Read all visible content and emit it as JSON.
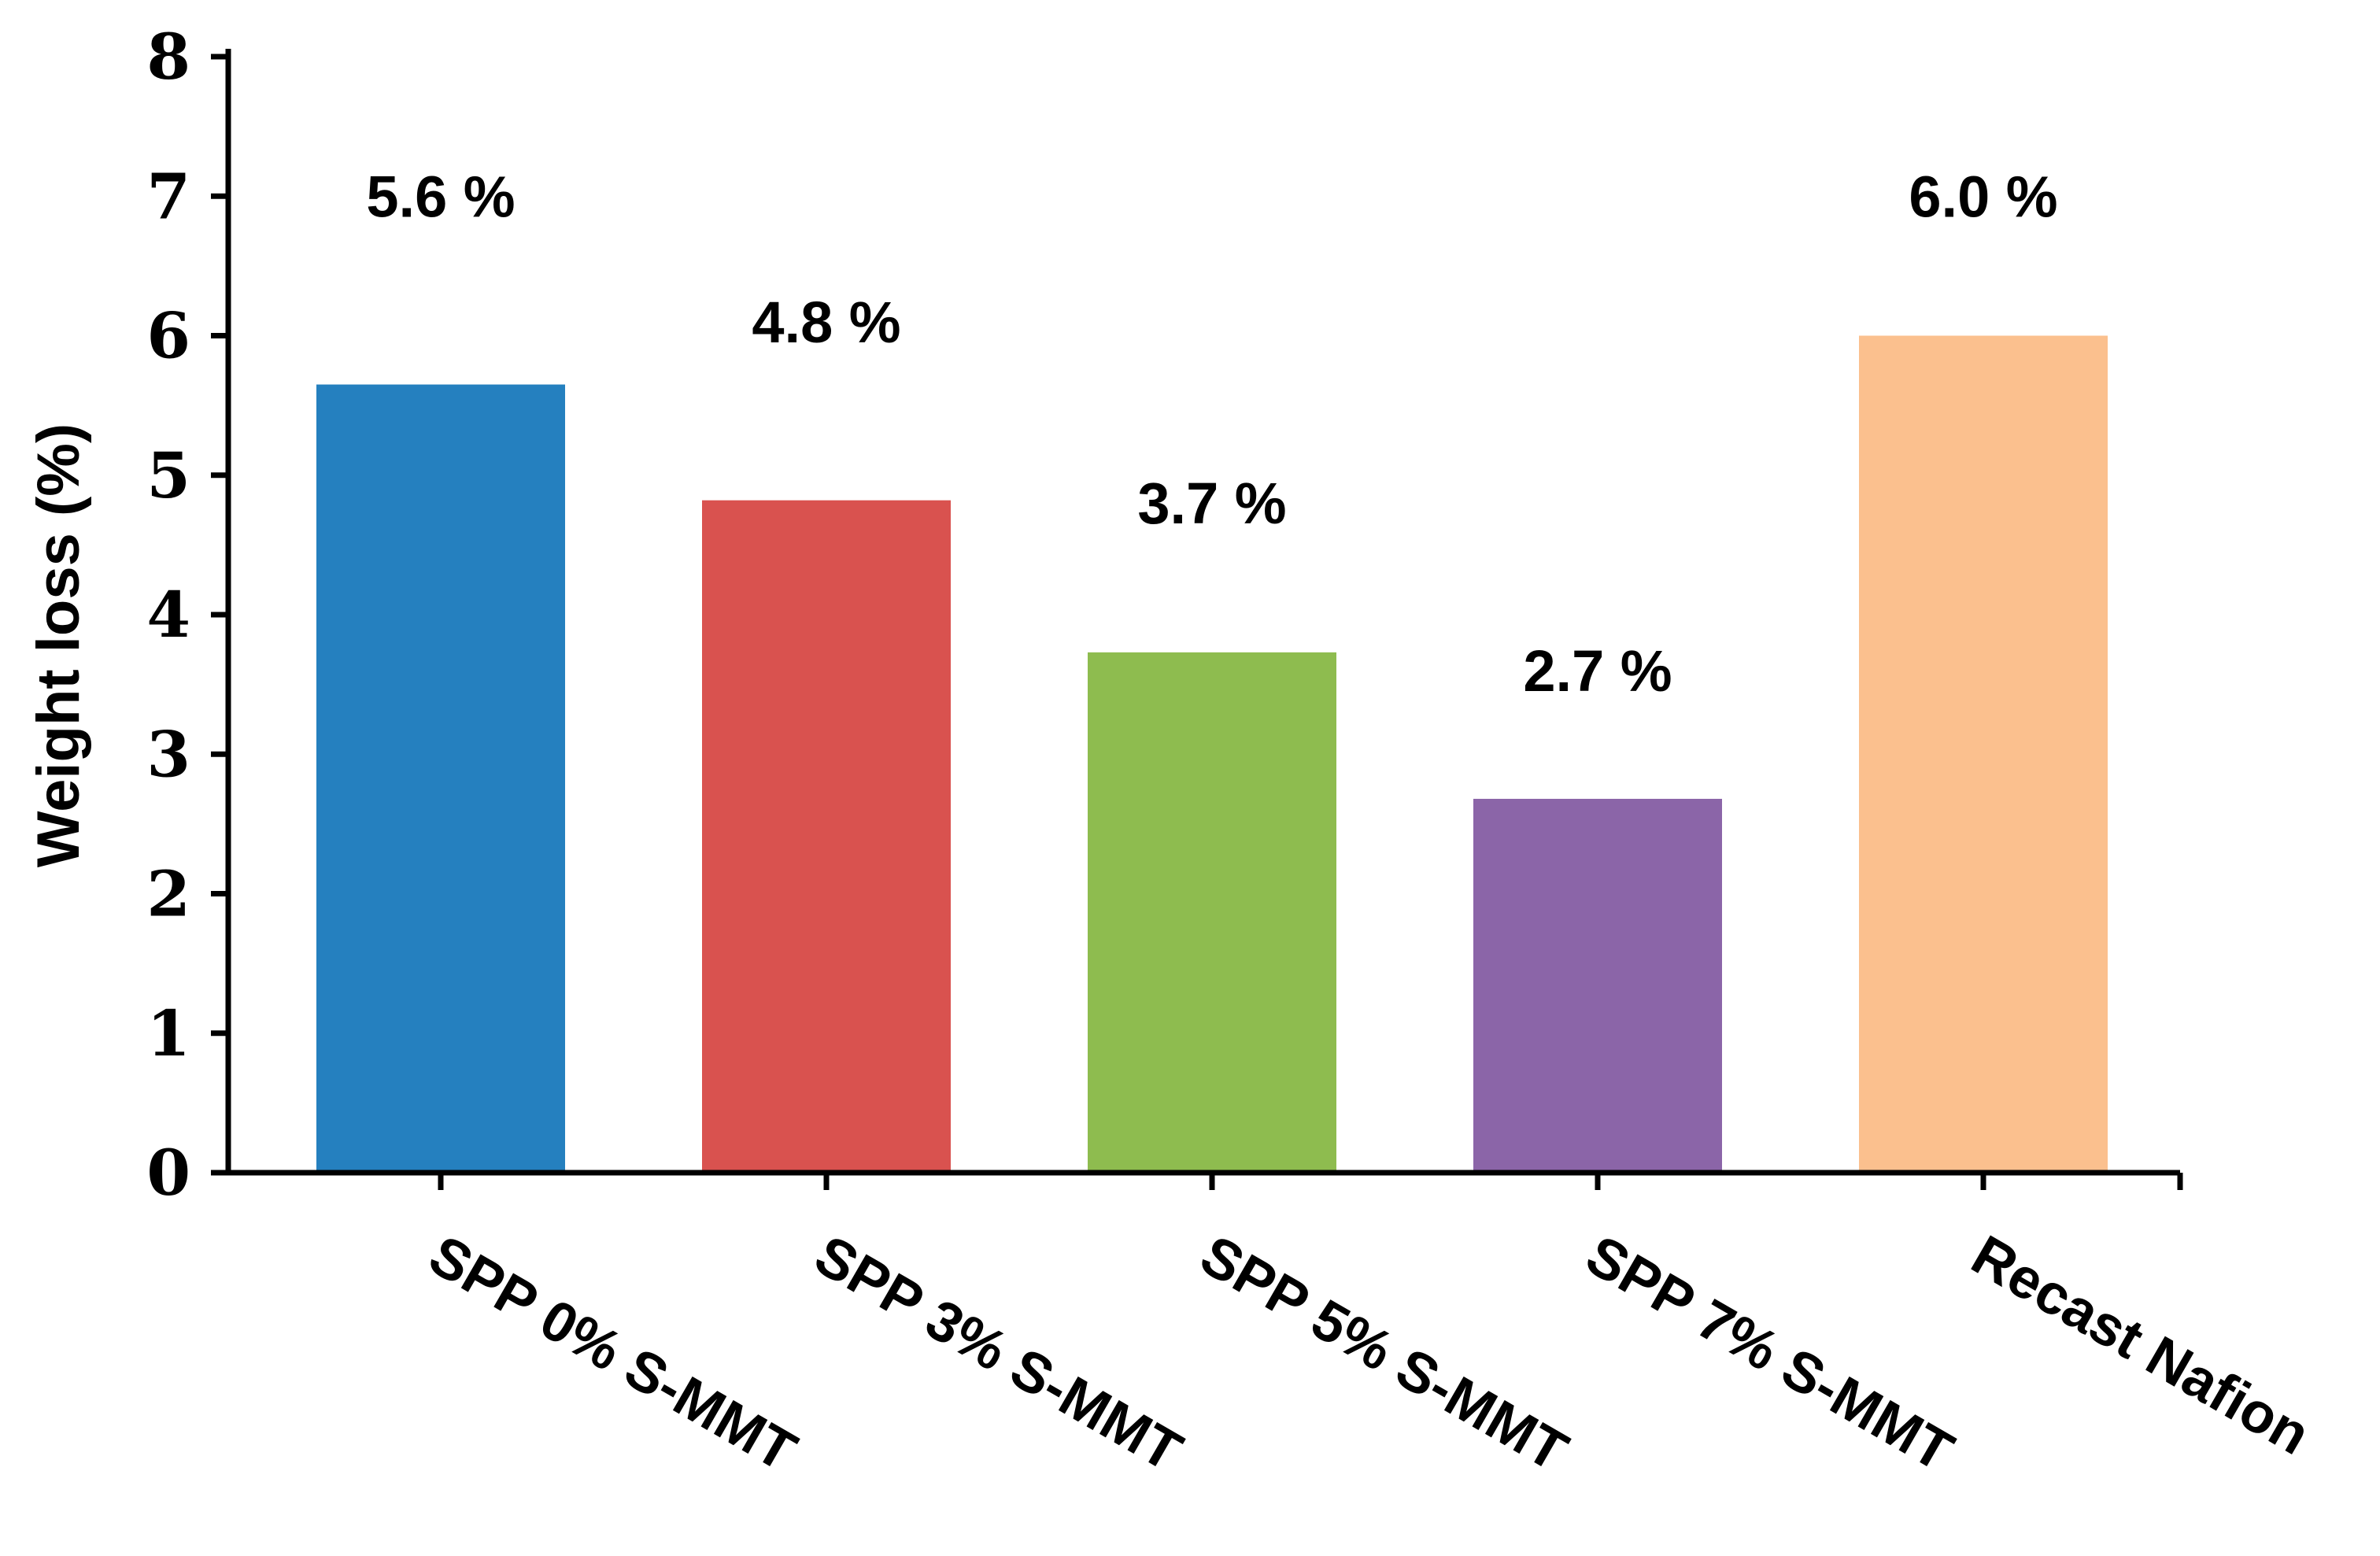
{
  "chart_data": {
    "type": "bar",
    "title": "",
    "xlabel": "",
    "ylabel": "Weight loss (%)",
    "ylim": [
      0,
      8
    ],
    "yticks": [
      "0",
      "1",
      "2",
      "3",
      "4",
      "5",
      "6",
      "7",
      "8"
    ],
    "grid": false,
    "legend": "none",
    "categories": [
      "SPP 0% S-MMT",
      "SPP 3% S-MMT",
      "SPP 5% S-MMT",
      "SPP 7% S-MMT",
      "Recast Nafion"
    ],
    "values": [
      5.65,
      4.82,
      3.73,
      2.68,
      6.0
    ],
    "data_labels": [
      "5.6 %",
      "4.8 %",
      "3.7 %",
      "2.7 %",
      "6.0 %"
    ],
    "label_values": [
      7.0,
      6.1,
      4.8,
      3.6,
      7.0
    ],
    "colors": [
      "#2580BF",
      "#D9524F",
      "#8EBC4F",
      "#8B65A8",
      "#FBC08E"
    ]
  }
}
